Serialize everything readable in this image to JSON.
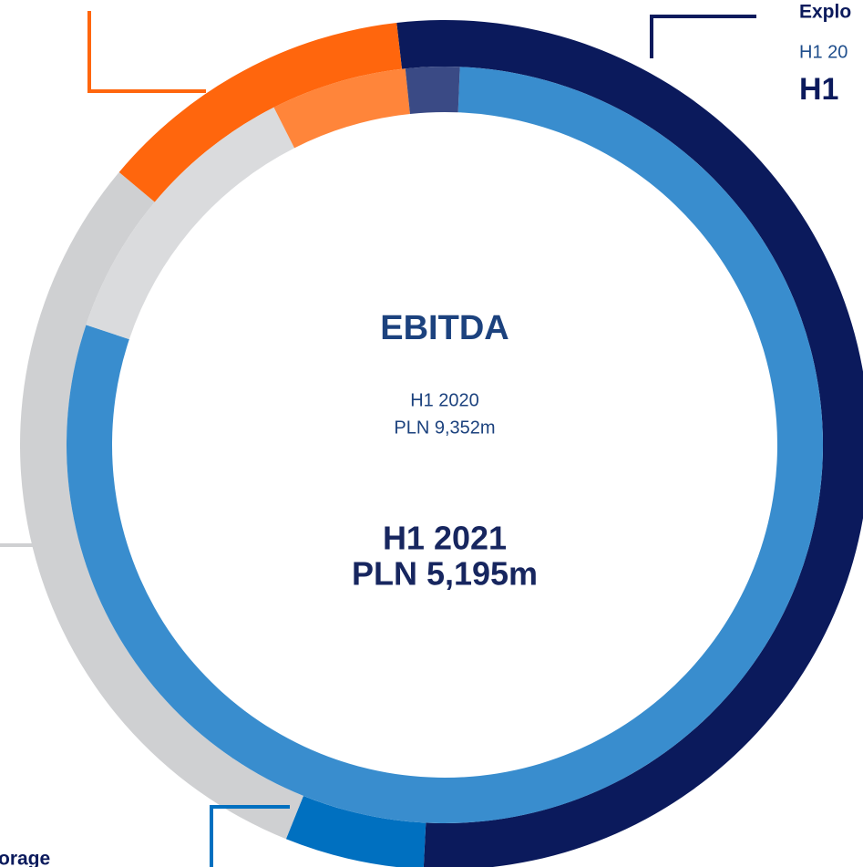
{
  "chart_data": {
    "type": "donut",
    "title": "EBITDA",
    "rings": [
      {
        "values": [
          52.6,
          5.3,
          30,
          12.1
        ],
        "colors": [
          "#0b1a5c",
          "#0070c0",
          "#cfd0d2",
          "#ff660d"
        ]
      },
      {
        "values": [
          79.5,
          12.4,
          5.8,
          2.3
        ],
        "colors": [
          "#398dce",
          "#dadbdd",
          "#ff853a",
          "#3a4a85"
        ]
      }
    ],
    "center": {
      "previous_period": "H1 2020",
      "previous_value": "PLN 9,352m",
      "current_period": "H1 2021",
      "current_value": "PLN 5,195m"
    },
    "labels": [
      {
        "title": "Explo",
        "previous": "H1 20",
        "current": "H1"
      },
      {
        "title": "orage"
      }
    ]
  }
}
